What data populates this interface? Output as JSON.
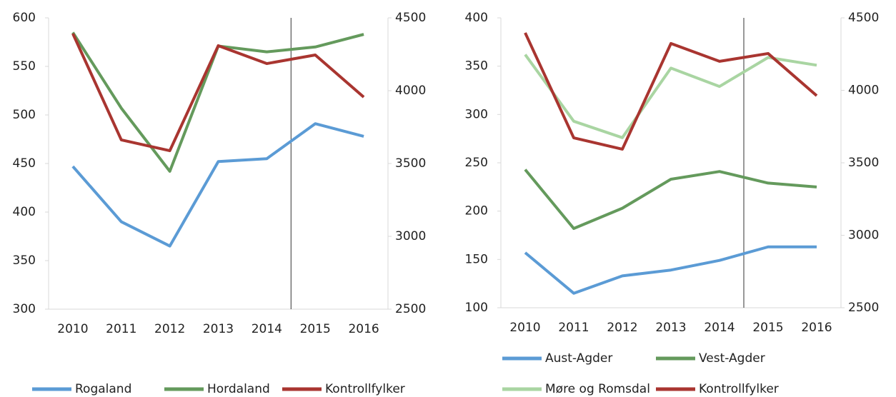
{
  "chart_data": [
    {
      "type": "line",
      "categories": [
        "2010",
        "2011",
        "2012",
        "2013",
        "2014",
        "2015",
        "2016"
      ],
      "ylim": [
        300,
        600
      ],
      "yticks": [
        300,
        350,
        400,
        450,
        500,
        550,
        600
      ],
      "y2lim": [
        2500,
        4500
      ],
      "y2ticks": [
        2500,
        3000,
        3500,
        4000,
        4500
      ],
      "series": [
        {
          "name": "Rogaland",
          "color": "#5b9bd5",
          "values": [
            447,
            390,
            365,
            452,
            455,
            491,
            478
          ]
        },
        {
          "name": "Hordaland",
          "color": "#649a5c",
          "values": [
            585,
            507,
            442,
            571,
            565,
            570,
            583
          ]
        },
        {
          "name": "Kontrollfylker",
          "color": "#a93530",
          "axis": "y2",
          "values": [
            4392,
            3662,
            3588,
            4309,
            4186,
            4245,
            3956
          ]
        }
      ]
    },
    {
      "type": "line",
      "categories": [
        "2010",
        "2011",
        "2012",
        "2013",
        "2014",
        "2015",
        "2016"
      ],
      "ylim": [
        100,
        400
      ],
      "yticks": [
        100,
        150,
        200,
        250,
        300,
        350,
        400
      ],
      "y2lim": [
        2500,
        4500
      ],
      "y2ticks": [
        2500,
        3000,
        3500,
        4000,
        4500
      ],
      "series": [
        {
          "name": "Aust-Agder",
          "color": "#5b9bd5",
          "values": [
            157,
            115,
            133,
            139,
            149,
            163,
            163
          ]
        },
        {
          "name": "Vest-Agder",
          "color": "#649a5c",
          "values": [
            243,
            182,
            203,
            233,
            241,
            229,
            225
          ]
        },
        {
          "name": "Møre og Romsdal",
          "color": "#a9d5a2",
          "values": [
            362,
            293,
            276,
            348,
            329,
            359,
            351
          ]
        },
        {
          "name": "Kontrollfylker",
          "color": "#a93530",
          "axis": "y2",
          "values": [
            4397,
            3672,
            3594,
            4323,
            4200,
            4254,
            3963
          ]
        }
      ]
    }
  ]
}
